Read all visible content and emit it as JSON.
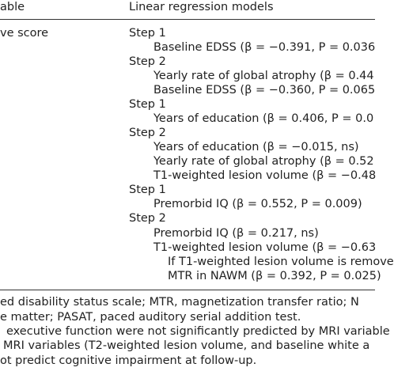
{
  "table": {
    "header": [
      "able",
      "Linear regression models"
    ],
    "variable": "ve score",
    "lines": [
      "Step 1",
      "Baseline EDSS (β = −0.391, P = 0.036",
      "Step 2",
      "Yearly rate of global atrophy (β = 0.44",
      "Baseline EDSS (β = −0.360, P = 0.065",
      "Step 1",
      "Years of education (β = 0.406, P = 0.0",
      "Step 2",
      "Years of education (β = −0.015, ns)",
      "Yearly rate of global atrophy (β = 0.52",
      "T1-weighted lesion volume (β = −0.48",
      "Step 1",
      "Premorbid IQ (β = 0.552, P = 0.009)",
      "Step 2",
      "Premorbid IQ (β = 0.217, ns)",
      "T1-weighted lesion volume (β = −0.63",
      "If T1-weighted lesion volume is remove",
      "MTR in NAWM (β = 0.392, P = 0.025)"
    ]
  },
  "footnotes": [
    "ed disability status scale; MTR, magnetization transfer ratio; N",
    "e matter; PASAT, paced auditory serial addition test.",
    "executive function were not significantly predicted by MRI variable",
    "MRI variables (T2-weighted lesion volume, and baseline white a",
    "ot predict cognitive impairment at follow-up."
  ]
}
